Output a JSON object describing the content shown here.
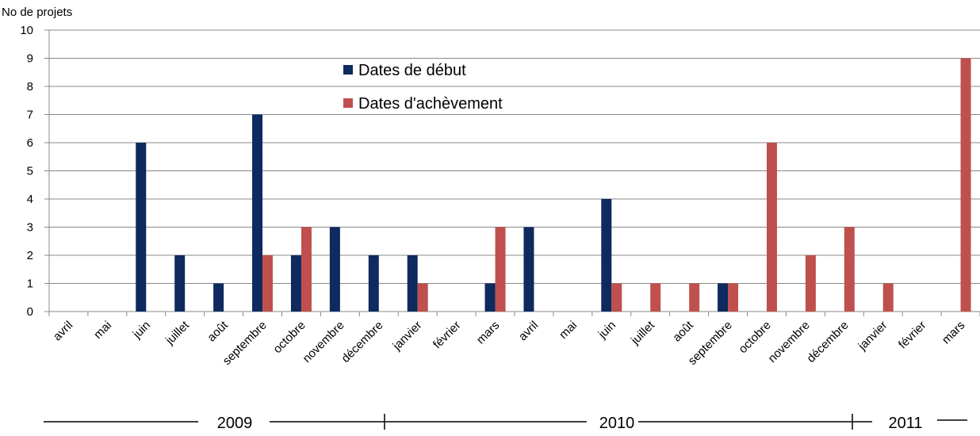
{
  "chart_data": {
    "type": "bar",
    "y_label": "No de projets",
    "categories": [
      "avril",
      "mai",
      "juin",
      "juillet",
      "août",
      "septembre",
      "octobre",
      "novembre",
      "décembre",
      "janvier",
      "février",
      "mars",
      "avril",
      "mai",
      "juin",
      "juillet",
      "août",
      "septembre",
      "octobre",
      "novembre",
      "décembre",
      "janvier",
      "février",
      "mars"
    ],
    "series": [
      {
        "name": "Dates de début",
        "color": "#0e2a5e",
        "values": [
          0,
          0,
          6,
          2,
          1,
          7,
          2,
          3,
          2,
          2,
          0,
          1,
          3,
          0,
          4,
          0,
          0,
          1,
          0,
          0,
          0,
          0,
          0,
          0
        ]
      },
      {
        "name": "Dates d'achèvement",
        "color": "#c0504d",
        "values": [
          0,
          0,
          0,
          0,
          0,
          2,
          3,
          0,
          0,
          1,
          0,
          3,
          0,
          0,
          1,
          1,
          1,
          1,
          6,
          2,
          3,
          1,
          0,
          9
        ]
      }
    ],
    "year_labels": [
      "2009",
      "2010",
      "2011"
    ],
    "ylim": [
      0,
      10
    ],
    "yticks": [
      0,
      1,
      2,
      3,
      4,
      5,
      6,
      7,
      8,
      9,
      10
    ],
    "grid": true
  }
}
